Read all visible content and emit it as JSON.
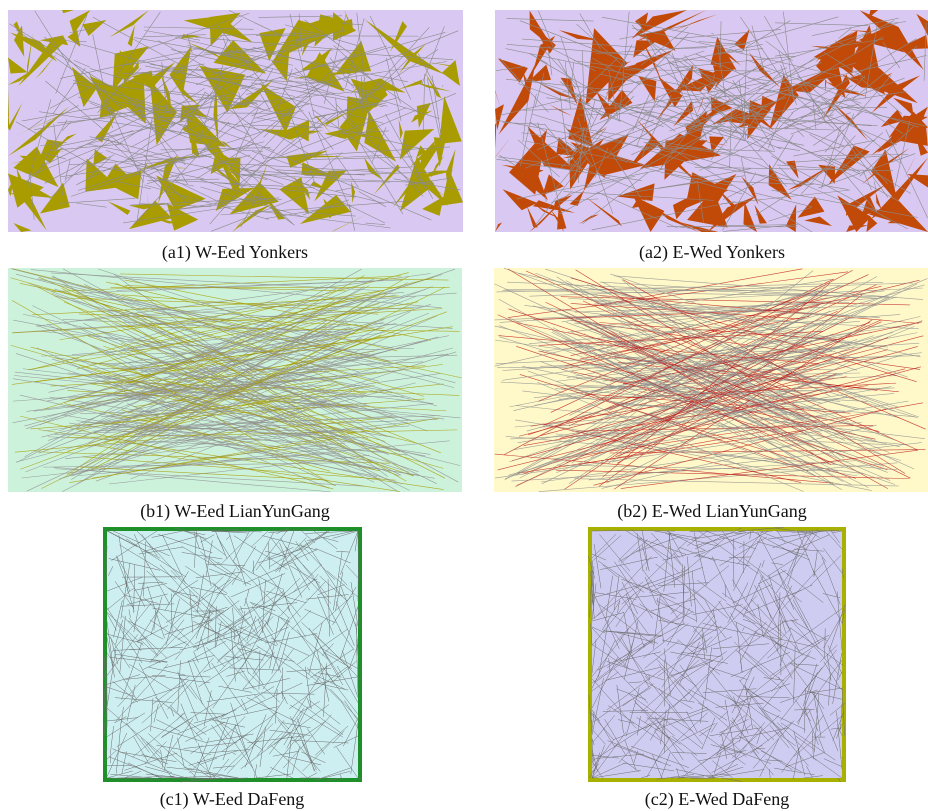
{
  "panels": [
    {
      "caption": "(a1) W-Eed Yonkers"
    },
    {
      "caption": "(a2) E-Wed Yonkers"
    },
    {
      "caption": "(b1) W-Eed LianYunGang"
    },
    {
      "caption": "(b2) E-Wed LianYunGang"
    },
    {
      "caption": "(c1) W-Eed DaFeng"
    },
    {
      "caption": "(c2) E-Wed DaFeng"
    }
  ]
}
